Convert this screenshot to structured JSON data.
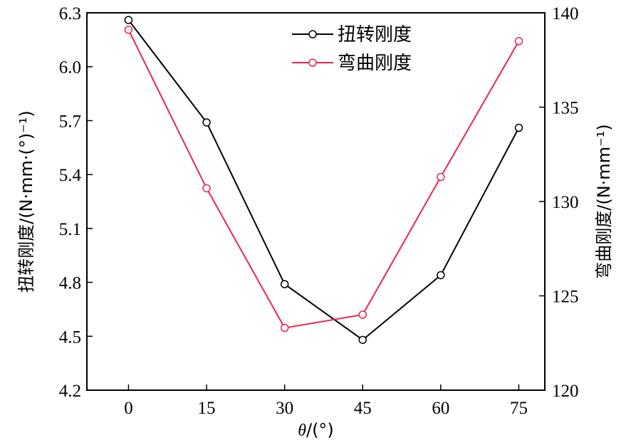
{
  "chart_data": {
    "type": "line",
    "x": [
      0,
      15,
      30,
      45,
      60,
      75
    ],
    "x_ticks": [
      "0",
      "15",
      "30",
      "45",
      "60",
      "75"
    ],
    "xlim": [
      -8,
      80
    ],
    "xlabel_italic": "θ",
    "xlabel_rest": "/(°)",
    "left_axis": {
      "label": "扭转刚度/(N·mm·(°)⁻¹)",
      "ylim": [
        4.2,
        6.3
      ],
      "ticks": [
        "4.2",
        "4.5",
        "4.8",
        "5.1",
        "5.4",
        "5.7",
        "6.0",
        "6.3"
      ]
    },
    "right_axis": {
      "label": "弯曲刚度/(N·mm⁻¹)",
      "ylim": [
        120,
        140
      ],
      "ticks": [
        "120",
        "125",
        "130",
        "135",
        "140"
      ]
    },
    "series": [
      {
        "name": "扭转刚度",
        "axis": "left",
        "color": "#000000",
        "values": [
          6.26,
          5.69,
          4.79,
          4.48,
          4.84,
          5.66
        ]
      },
      {
        "name": "弯曲刚度",
        "axis": "right",
        "color": "#e8264f",
        "values": [
          139.1,
          130.7,
          123.3,
          124.0,
          131.3,
          138.5
        ]
      }
    ],
    "legend_position": "top-right",
    "grid": false
  }
}
